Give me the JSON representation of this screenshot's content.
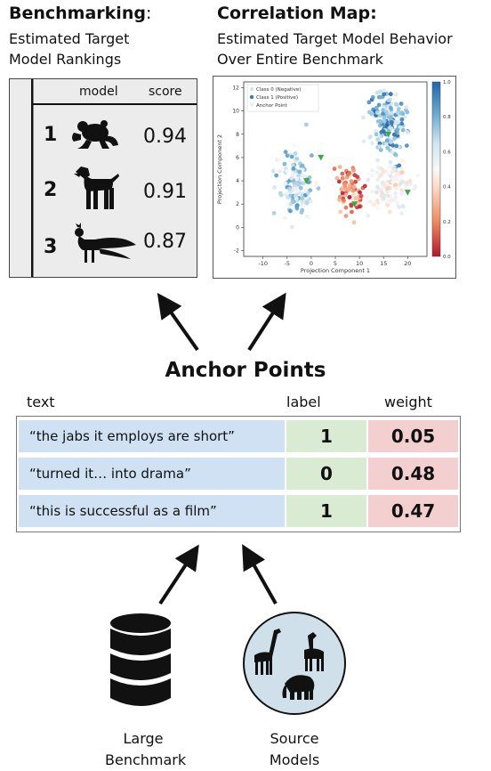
{
  "benchmarking": {
    "title": "Benchmarking",
    "colon": ":",
    "subtitle_line1": "Estimated Target",
    "subtitle_line2": "Model Rankings"
  },
  "ranking_table": {
    "header_model": "model",
    "header_score": "score",
    "rows": [
      {
        "rank": "1",
        "animal_icon": "frog-icon",
        "score": "0.94"
      },
      {
        "rank": "2",
        "animal_icon": "dog-icon",
        "score": "0.91"
      },
      {
        "rank": "3",
        "animal_icon": "peacock-icon",
        "score": "0.87"
      }
    ]
  },
  "correlation": {
    "title": "Correlation Map:",
    "subtitle_line1": "Estimated Target Model Behavior",
    "subtitle_line2": "Over Entire Benchmark"
  },
  "chart_data": {
    "type": "scatter",
    "title": "",
    "xlabel": "Projection Component 1",
    "ylabel": "Projection Component 2",
    "xlim": [
      -14,
      24
    ],
    "ylim": [
      -2.5,
      12.5
    ],
    "xticks": [
      "-10",
      "-5",
      "0",
      "5",
      "10",
      "15",
      "20"
    ],
    "yticks": [
      "-2",
      "0",
      "2",
      "4",
      "6",
      "8",
      "10",
      "12"
    ],
    "legend": [
      "Class 0 (Negative)",
      "Class 1 (Positive)",
      "Anchor Point"
    ],
    "legend_position": "top-left",
    "colorbar_ticks": [
      "0.0",
      "0.2",
      "0.4",
      "0.6",
      "0.8",
      "1.0"
    ],
    "colormap": [
      "#b2182b",
      "#ef8a62",
      "#fddbc7",
      "#f7f7f7",
      "#d1e5f0",
      "#67a9cf",
      "#2166ac"
    ],
    "anchor_color": "#3aa845",
    "series": [
      {
        "name": "Class 0 (Negative)",
        "clusters": [
          {
            "cx": 16,
            "cy": 9,
            "sx": 3.2,
            "sy": 2.2,
            "count": 170,
            "vmin": 0.6,
            "vmax": 1.0
          },
          {
            "cx": 16,
            "cy": 3.5,
            "sx": 3.6,
            "sy": 1.6,
            "count": 110,
            "vmin": 0.3,
            "vmax": 0.65
          }
        ]
      },
      {
        "name": "Class 1 (Positive)",
        "clusters": [
          {
            "cx": -3,
            "cy": 3.5,
            "sx": 3.2,
            "sy": 2.4,
            "count": 150,
            "vmin": 0.45,
            "vmax": 0.9
          },
          {
            "cx": 8,
            "cy": 3,
            "sx": 2.2,
            "sy": 1.8,
            "count": 80,
            "vmin": 0.0,
            "vmax": 0.35
          }
        ]
      }
    ],
    "anchors": [
      [
        -1,
        4
      ],
      [
        2,
        6
      ],
      [
        16,
        8
      ],
      [
        9,
        2
      ],
      [
        20,
        3
      ]
    ]
  },
  "anchor_points": {
    "title": "Anchor Points",
    "col_text": "text",
    "col_label": "label",
    "col_weight": "weight",
    "rows": [
      {
        "text": "“the jabs it employs are short”",
        "label": "1",
        "weight": "0.05"
      },
      {
        "text": "“turned it… into drama”",
        "label": "0",
        "weight": "0.48"
      },
      {
        "text": "“this is successful as a film”",
        "label": "1",
        "weight": "0.47"
      }
    ]
  },
  "bottom": {
    "benchmark_line1": "Large",
    "benchmark_line2": "Benchmark",
    "models_line1": "Source",
    "models_line2": "Models"
  }
}
